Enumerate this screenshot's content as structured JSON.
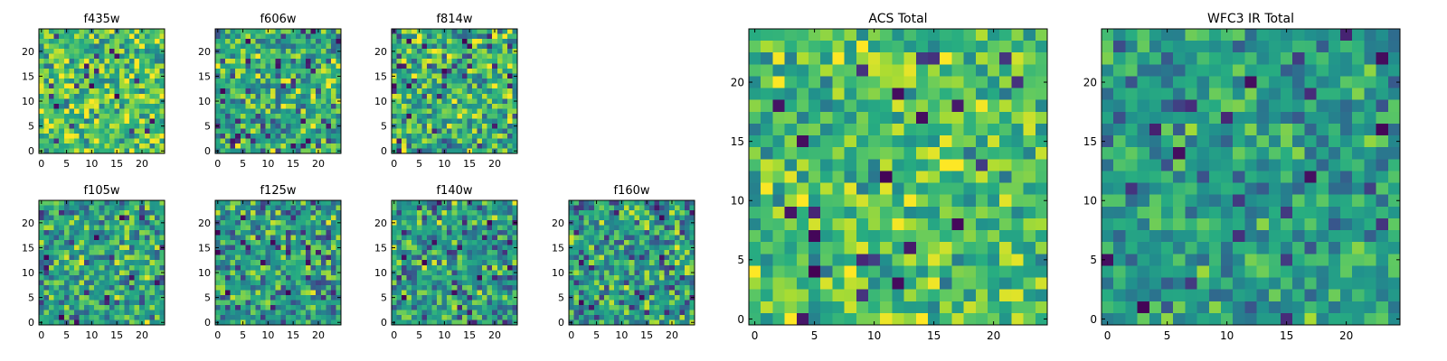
{
  "chart_data": {
    "type": "heatmap",
    "colormap": "viridis",
    "grid": false,
    "panels": [
      {
        "id": "f435w",
        "title": "f435w",
        "rows": 25,
        "cols": 25,
        "xlim": [
          -0.5,
          24.5
        ],
        "ylim": [
          -0.5,
          24.5
        ],
        "xticks": [
          0,
          5,
          10,
          15,
          20
        ],
        "yticks": [
          0,
          5,
          10,
          15,
          20
        ],
        "mean_level": 0.72,
        "contrast": 0.3,
        "seed": 11
      },
      {
        "id": "f606w",
        "title": "f606w",
        "rows": 25,
        "cols": 25,
        "xlim": [
          -0.5,
          24.5
        ],
        "ylim": [
          -0.5,
          24.5
        ],
        "xticks": [
          0,
          5,
          10,
          15,
          20
        ],
        "yticks": [
          0,
          5,
          10,
          15,
          20
        ],
        "mean_level": 0.62,
        "contrast": 0.34,
        "seed": 23
      },
      {
        "id": "f814w",
        "title": "f814w",
        "rows": 25,
        "cols": 25,
        "xlim": [
          -0.5,
          24.5
        ],
        "ylim": [
          -0.5,
          24.5
        ],
        "xticks": [
          0,
          5,
          10,
          15,
          20
        ],
        "yticks": [
          0,
          5,
          10,
          15,
          20
        ],
        "mean_level": 0.64,
        "contrast": 0.36,
        "seed": 37
      },
      {
        "id": "f105w",
        "title": "f105w",
        "rows": 25,
        "cols": 25,
        "xlim": [
          -0.5,
          24.5
        ],
        "ylim": [
          -0.5,
          24.5
        ],
        "xticks": [
          0,
          5,
          10,
          15,
          20
        ],
        "yticks": [
          0,
          5,
          10,
          15,
          20
        ],
        "mean_level": 0.58,
        "contrast": 0.34,
        "seed": 41
      },
      {
        "id": "f125w",
        "title": "f125w",
        "rows": 25,
        "cols": 25,
        "xlim": [
          -0.5,
          24.5
        ],
        "ylim": [
          -0.5,
          24.5
        ],
        "xticks": [
          0,
          5,
          10,
          15,
          20
        ],
        "yticks": [
          0,
          5,
          10,
          15,
          20
        ],
        "mean_level": 0.55,
        "contrast": 0.33,
        "seed": 53
      },
      {
        "id": "f140w",
        "title": "f140w",
        "rows": 25,
        "cols": 25,
        "xlim": [
          -0.5,
          24.5
        ],
        "ylim": [
          -0.5,
          24.5
        ],
        "xticks": [
          0,
          5,
          10,
          15,
          20
        ],
        "yticks": [
          0,
          5,
          10,
          15,
          20
        ],
        "mean_level": 0.55,
        "contrast": 0.34,
        "seed": 67
      },
      {
        "id": "f160w",
        "title": "f160w",
        "rows": 25,
        "cols": 25,
        "xlim": [
          -0.5,
          24.5
        ],
        "ylim": [
          -0.5,
          24.5
        ],
        "xticks": [
          0,
          5,
          10,
          15,
          20
        ],
        "yticks": [
          0,
          5,
          10,
          15,
          20
        ],
        "mean_level": 0.56,
        "contrast": 0.36,
        "seed": 79
      },
      {
        "id": "acs_total",
        "title": "ACS Total",
        "rows": 25,
        "cols": 25,
        "xlim": [
          -0.5,
          24.5
        ],
        "ylim": [
          -0.5,
          24.5
        ],
        "xticks": [
          0,
          5,
          10,
          15,
          20
        ],
        "yticks": [
          0,
          5,
          10,
          15,
          20
        ],
        "mean_level": 0.7,
        "contrast": 0.28,
        "seed": 97
      },
      {
        "id": "wfc3_ir_total",
        "title": "WFC3 IR Total",
        "rows": 25,
        "cols": 25,
        "xlim": [
          -0.5,
          24.5
        ],
        "ylim": [
          -0.5,
          24.5
        ],
        "xticks": [
          0,
          5,
          10,
          15,
          20
        ],
        "yticks": [
          0,
          5,
          10,
          15,
          20
        ],
        "mean_level": 0.55,
        "contrast": 0.25,
        "seed": 113
      }
    ]
  }
}
